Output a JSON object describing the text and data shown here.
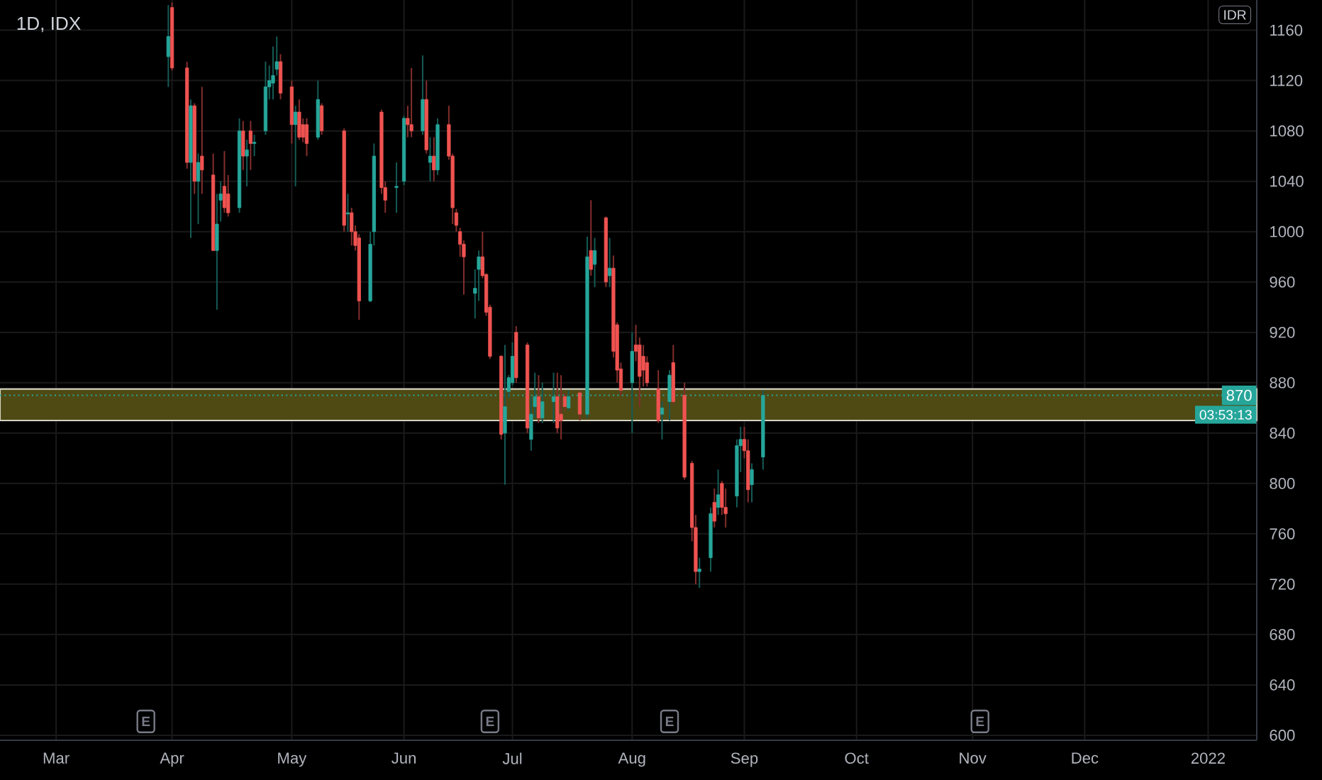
{
  "chart_data": {
    "type": "candlestick",
    "title": "1D, IDX",
    "x": [
      "2021-03-31",
      "2021-04-01",
      "2021-04-05",
      "2021-04-06",
      "2021-04-07",
      "2021-04-08",
      "2021-04-09",
      "2021-04-12",
      "2021-04-13",
      "2021-04-14",
      "2021-04-15",
      "2021-04-16",
      "2021-04-19",
      "2021-04-20",
      "2021-04-21",
      "2021-04-22",
      "2021-04-23",
      "2021-04-26",
      "2021-04-27",
      "2021-04-28",
      "2021-04-29",
      "2021-04-30",
      "2021-05-03",
      "2021-05-04",
      "2021-05-05",
      "2021-05-06",
      "2021-05-07",
      "2021-05-10",
      "2021-05-11",
      "2021-05-17",
      "2021-05-18",
      "2021-05-19",
      "2021-05-20",
      "2021-05-21",
      "2021-05-24",
      "2021-05-25",
      "2021-05-27",
      "2021-05-28",
      "2021-05-31",
      "2021-06-02",
      "2021-06-03",
      "2021-06-04",
      "2021-06-07",
      "2021-06-08",
      "2021-06-09",
      "2021-06-10",
      "2021-06-11",
      "2021-06-14",
      "2021-06-15",
      "2021-06-16",
      "2021-06-17",
      "2021-06-18",
      "2021-06-21",
      "2021-06-22",
      "2021-06-23",
      "2021-06-24",
      "2021-06-25",
      "2021-06-28",
      "2021-06-29",
      "2021-06-30",
      "2021-07-01",
      "2021-07-02",
      "2021-07-05",
      "2021-07-06",
      "2021-07-07",
      "2021-07-08",
      "2021-07-09",
      "2021-07-12",
      "2021-07-13",
      "2021-07-14",
      "2021-07-15",
      "2021-07-16",
      "2021-07-19",
      "2021-07-21",
      "2021-07-22",
      "2021-07-23",
      "2021-07-26",
      "2021-07-27",
      "2021-07-28",
      "2021-07-29",
      "2021-07-30",
      "2021-08-02",
      "2021-08-03",
      "2021-08-04",
      "2021-08-05",
      "2021-08-06",
      "2021-08-09",
      "2021-08-10",
      "2021-08-12",
      "2021-08-13",
      "2021-08-16",
      "2021-08-18",
      "2021-08-19",
      "2021-08-20",
      "2021-08-23",
      "2021-08-24",
      "2021-08-25",
      "2021-08-26",
      "2021-08-27",
      "2021-08-30",
      "2021-08-31",
      "2021-09-01",
      "2021-09-02",
      "2021-09-03",
      "2021-09-06"
    ],
    "ohlc": [
      [
        1139,
        1180,
        1115,
        1155
      ],
      [
        1178,
        1182,
        1128,
        1130
      ],
      [
        1130,
        1135,
        1050,
        1055
      ],
      [
        1055,
        1105,
        995,
        1100
      ],
      [
        1100,
        1102,
        1030,
        1040
      ],
      [
        1040,
        1062,
        1006,
        1055
      ],
      [
        1060,
        1115,
        1030,
        1049
      ],
      [
        1045,
        1062,
        985,
        985
      ],
      [
        985,
        1030,
        938,
        1006
      ],
      [
        1025,
        1040,
        1008,
        1030
      ],
      [
        1036,
        1064,
        1015,
        1019
      ],
      [
        1030,
        1045,
        1012,
        1015
      ],
      [
        1019,
        1090,
        1015,
        1080
      ],
      [
        1080,
        1088,
        1049,
        1060
      ],
      [
        1060,
        1073,
        1036,
        1065
      ],
      [
        1080,
        1088,
        1049,
        1070
      ],
      [
        1070,
        1077,
        1060,
        1071
      ],
      [
        1080,
        1135,
        1077,
        1115
      ],
      [
        1115,
        1132,
        1105,
        1120
      ],
      [
        1118,
        1147,
        1105,
        1124
      ],
      [
        1129,
        1155,
        1124,
        1135
      ],
      [
        1135,
        1141,
        1105,
        1110
      ],
      [
        1115,
        1120,
        1070,
        1085
      ],
      [
        1085,
        1100,
        1036,
        1095
      ],
      [
        1095,
        1105,
        1073,
        1075
      ],
      [
        1085,
        1090,
        1071,
        1075
      ],
      [
        1085,
        1090,
        1060,
        1070
      ],
      [
        1075,
        1120,
        1073,
        1105
      ],
      [
        1100,
        1102,
        1077,
        1080
      ],
      [
        1080,
        1082,
        1000,
        1005
      ],
      [
        1014,
        1030,
        1000,
        1015
      ],
      [
        1015,
        1019,
        989,
        1000
      ],
      [
        1000,
        1005,
        985,
        989
      ],
      [
        995,
        998,
        930,
        945
      ],
      [
        945,
        1000,
        944,
        990
      ],
      [
        1000,
        1070,
        989,
        1060
      ],
      [
        1095,
        1097,
        1030,
        1035
      ],
      [
        1035,
        1040,
        1015,
        1025
      ],
      [
        1035,
        1055,
        1015,
        1036
      ],
      [
        1040,
        1092,
        1037,
        1090
      ],
      [
        1090,
        1100,
        1075,
        1085
      ],
      [
        1085,
        1130,
        1075,
        1080
      ],
      [
        1080,
        1140,
        1077,
        1105
      ],
      [
        1105,
        1120,
        1062,
        1065
      ],
      [
        1055,
        1075,
        1040,
        1060
      ],
      [
        1060,
        1075,
        1040,
        1049
      ],
      [
        1049,
        1090,
        1045,
        1085
      ],
      [
        1085,
        1100,
        1057,
        1060
      ],
      [
        1060,
        1062,
        1006,
        1019
      ],
      [
        1015,
        1018,
        1000,
        1005
      ],
      [
        1000,
        1003,
        980,
        990
      ],
      [
        990,
        993,
        950,
        980
      ],
      [
        951,
        970,
        931,
        955
      ],
      [
        970,
        985,
        945,
        980
      ],
      [
        980,
        1000,
        963,
        965
      ],
      [
        966,
        967,
        933,
        936
      ],
      [
        940,
        942,
        899,
        901
      ],
      [
        901,
        902,
        835,
        839
      ],
      [
        840,
        910,
        799,
        861
      ],
      [
        873,
        886,
        868,
        884
      ],
      [
        880,
        912,
        878,
        901
      ],
      [
        920,
        925,
        880,
        884
      ],
      [
        910,
        912,
        840,
        844
      ],
      [
        835,
        869,
        826,
        855
      ],
      [
        861,
        888,
        852,
        869
      ],
      [
        869,
        886,
        848,
        852
      ],
      [
        852,
        880,
        848,
        865
      ],
      [
        865,
        888,
        848,
        869
      ],
      [
        869,
        888,
        840,
        844
      ],
      [
        855,
        886,
        835,
        850
      ],
      [
        869,
        872,
        858,
        861
      ],
      [
        860,
        874,
        858,
        869
      ],
      [
        872,
        874,
        850,
        855
      ],
      [
        855,
        996,
        852,
        980
      ],
      [
        985,
        1025,
        965,
        970
      ],
      [
        974,
        995,
        956,
        985
      ],
      [
        1011,
        1012,
        956,
        960
      ],
      [
        965,
        995,
        956,
        971
      ],
      [
        971,
        981,
        900,
        905
      ],
      [
        926,
        928,
        880,
        890
      ],
      [
        891,
        896,
        870,
        874
      ],
      [
        880,
        920,
        840,
        905
      ],
      [
        910,
        926,
        897,
        905
      ],
      [
        910,
        916,
        861,
        885
      ],
      [
        901,
        910,
        877,
        890
      ],
      [
        896,
        901,
        877,
        880
      ],
      [
        875,
        890,
        848,
        850
      ],
      [
        855,
        865,
        835,
        860
      ],
      [
        865,
        890,
        850,
        886
      ],
      [
        896,
        910,
        863,
        865
      ],
      [
        870,
        880,
        803,
        805
      ],
      [
        816,
        818,
        754,
        765
      ],
      [
        765,
        775,
        720,
        730
      ],
      [
        730,
        741,
        717,
        732
      ],
      [
        741,
        781,
        730,
        776
      ],
      [
        785,
        796,
        765,
        770
      ],
      [
        781,
        811,
        775,
        791
      ],
      [
        800,
        802,
        775,
        781
      ],
      [
        781,
        796,
        765,
        776
      ],
      [
        790,
        835,
        781,
        830
      ],
      [
        830,
        845,
        809,
        835
      ],
      [
        835,
        845,
        820,
        826
      ],
      [
        826,
        835,
        785,
        795
      ],
      [
        799,
        816,
        785,
        811
      ],
      [
        821,
        874,
        811,
        870
      ]
    ],
    "colors": [
      "#26a69a",
      "#ef5350",
      "#ef5350",
      "#26a69a",
      "#ef5350",
      "#26a69a",
      "#ef5350",
      "#ef5350",
      "#26a69a",
      "#26a69a",
      "#ef5350",
      "#ef5350",
      "#26a69a",
      "#ef5350",
      "#26a69a",
      "#ef5350",
      "#26a69a",
      "#26a69a",
      "#26a69a",
      "#26a69a",
      "#26a69a",
      "#ef5350",
      "#ef5350",
      "#26a69a",
      "#ef5350",
      "#ef5350",
      "#ef5350",
      "#26a69a",
      "#ef5350",
      "#ef5350",
      "#26a69a",
      "#ef5350",
      "#ef5350",
      "#ef5350",
      "#26a69a",
      "#26a69a",
      "#ef5350",
      "#ef5350",
      "#26a69a",
      "#26a69a",
      "#ef5350",
      "#ef5350",
      "#26a69a",
      "#ef5350",
      "#26a69a",
      "#ef5350",
      "#26a69a",
      "#ef5350",
      "#ef5350",
      "#ef5350",
      "#ef5350",
      "#ef5350",
      "#26a69a",
      "#26a69a",
      "#ef5350",
      "#ef5350",
      "#ef5350",
      "#ef5350",
      "#26a69a",
      "#26a69a",
      "#26a69a",
      "#ef5350",
      "#ef5350",
      "#26a69a",
      "#26a69a",
      "#ef5350",
      "#26a69a",
      "#26a69a",
      "#ef5350",
      "#ef5350",
      "#ef5350",
      "#26a69a",
      "#ef5350",
      "#26a69a",
      "#ef5350",
      "#26a69a",
      "#ef5350",
      "#26a69a",
      "#ef5350",
      "#ef5350",
      "#ef5350",
      "#26a69a",
      "#ef5350",
      "#ef5350",
      "#ef5350",
      "#ef5350",
      "#ef5350",
      "#26a69a",
      "#26a69a",
      "#ef5350",
      "#ef5350",
      "#ef5350",
      "#ef5350",
      "#26a69a",
      "#26a69a",
      "#ef5350",
      "#26a69a",
      "#ef5350",
      "#ef5350",
      "#26a69a",
      "#26a69a",
      "#ef5350",
      "#ef5350",
      "#26a69a",
      "#26a69a"
    ],
    "xlim": [
      "2021-02-14",
      "2022-01-16"
    ],
    "xticks": [
      {
        "value": "2021-03-01",
        "label": "Mar"
      },
      {
        "value": "2021-04-01",
        "label": "Apr"
      },
      {
        "value": "2021-05-03",
        "label": "May"
      },
      {
        "value": "2021-06-02",
        "label": "Jun"
      },
      {
        "value": "2021-07-01",
        "label": "Jul"
      },
      {
        "value": "2021-08-02",
        "label": "Aug"
      },
      {
        "value": "2021-09-01",
        "label": "Sep"
      },
      {
        "value": "2021-10-01",
        "label": "Oct"
      },
      {
        "value": "2021-11-01",
        "label": "Nov"
      },
      {
        "value": "2021-12-01",
        "label": "Dec"
      },
      {
        "value": "2022-01-03",
        "label": "2022"
      }
    ],
    "ylim": [
      596,
      1184
    ],
    "yticks": [
      600,
      640,
      680,
      720,
      760,
      800,
      840,
      880,
      920,
      960,
      1000,
      1040,
      1080,
      1120,
      1160
    ],
    "grid": true,
    "ref_lines": [
      {
        "axis": "y",
        "value": 870,
        "label": "870",
        "color": "#26a69a",
        "line_style": "dotted"
      }
    ],
    "bands": [
      {
        "axis": "y",
        "from": 850,
        "to": 875,
        "color": "#4f4a14"
      }
    ],
    "annotations": [
      "IDR",
      "03:53:13",
      {
        "text": "E",
        "x": "2021-03-25",
        "y": 611
      },
      {
        "text": "E",
        "x": "2021-06-25",
        "y": 611
      },
      {
        "text": "E",
        "x": "2021-08-12",
        "y": 611
      },
      {
        "text": "E",
        "x": "2021-11-03",
        "y": 611
      }
    ]
  }
}
